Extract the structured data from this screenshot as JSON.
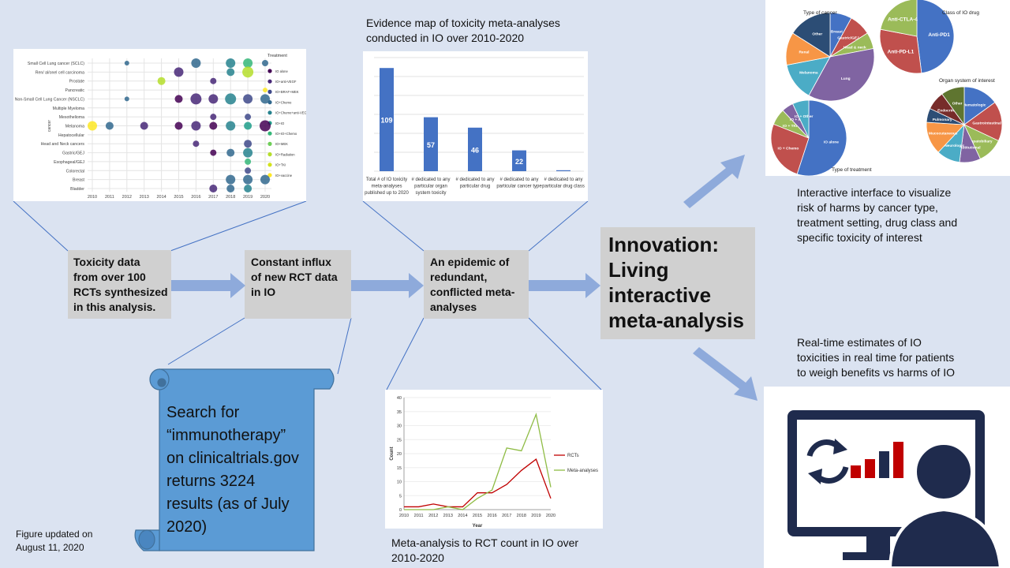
{
  "boxes": {
    "toxicity": [
      "Toxicity data",
      "from over  100",
      "RCTs synthesized",
      "in this analysis."
    ],
    "influx": [
      "Constant influx",
      "of new RCT data",
      "in IO"
    ],
    "epidemic": [
      "An epidemic of",
      "redundant,",
      "conflicted meta-",
      "analyses"
    ],
    "innovation": [
      "Innovation:",
      "Living",
      "interactive",
      "meta-analysis"
    ]
  },
  "scroll_text": [
    "Search for",
    "“immunotherapy”",
    "on clinicaltrials.gov",
    "returns 3224",
    "results (as of July",
    "2020)"
  ],
  "captions": {
    "evidence_map": [
      "Evidence map of toxicity meta-analyses",
      "conducted  in IO over  2010-2020"
    ],
    "interactive": [
      "Interactive interface to visualize",
      "risk of harms  by cancer type,",
      "treatment setting, drug class and",
      "specific toxicity of interest"
    ],
    "realtime": [
      "Real-time estimates of IO",
      "toxicities in real time  for patients",
      "to weigh benefits vs harms of IO"
    ],
    "ma_rct": [
      "Meta-analysis to RCT count in IO over",
      "2010-2020"
    ],
    "updated": [
      "Figure updated on",
      "August 11, 2020"
    ]
  },
  "colors": {
    "background": "#dbe3f1",
    "gray_box": "#d0d0d0",
    "arrow": "#8eaadb",
    "bar": "#4472c4",
    "scroll": "#5b9bd5",
    "rct_line": "#c00000",
    "ma_line": "#8fbc45",
    "monitor": "#1f2b4d"
  },
  "chart_data": [
    {
      "type": "scatter",
      "title": "",
      "legend_title": "Treatment",
      "legend_position": "right",
      "legend": [
        "IO alone",
        "IO+anti-VEGF",
        "IO+BRAF+MEK",
        "IO+Chemo",
        "IO+Chemo+anti-VEGF",
        "IO+IO",
        "IO+IO+Chemo",
        "IO+MEK",
        "IO+Radiation",
        "IO+TKI",
        "IO+vaccine"
      ],
      "ylabel": "cancer",
      "x_ticks": [
        "2010",
        "2011",
        "2012",
        "2013",
        "2014",
        "2015",
        "2016",
        "2017",
        "2018",
        "2019",
        "2020"
      ],
      "y_categories": [
        "Small Cell Lung cancer (SCLC)",
        "Ren/ al/onel cell carcinoma",
        "Prostate",
        "Pancreatic",
        "Non-Small Cell Lung Cancer (NSCLC)",
        "Multiple Myeloma",
        "Mesothelioma",
        "Melanoma",
        "Hepatocellular",
        "Head and Neck cancers",
        "Gastric/GEJ",
        "Esophageal/GEJ",
        "Colorectal",
        "Breast",
        "Bladder"
      ]
    },
    {
      "type": "bar",
      "title": "Evidence map of toxicity meta-analyses conducted  in IO over  2010-2020",
      "categories": [
        [
          "Total # of IO toxicity",
          "meta-analyses",
          "published up to 2020"
        ],
        [
          "# dedicated to any",
          "particular organ",
          "system toxicity"
        ],
        [
          "# dedicated to any",
          "particular drug"
        ],
        [
          "# dedicated to any",
          "particular cancer type"
        ],
        [
          "# dedicated to any",
          "particular drug class"
        ]
      ],
      "values": [
        109,
        57,
        46,
        22,
        1
      ],
      "ylim": [
        0,
        120
      ],
      "grid": true
    },
    {
      "type": "line",
      "title": "Meta-analysis to RCT count in IO over 2010-2020",
      "x": [
        2010,
        2011,
        2012,
        2013,
        2014,
        2015,
        2016,
        2017,
        2018,
        2019,
        2020
      ],
      "series": [
        {
          "name": "RCTs",
          "values": [
            1,
            1,
            2,
            1,
            1,
            6,
            6,
            9,
            14,
            18,
            4
          ]
        },
        {
          "name": "Meta-analyses",
          "values": [
            0,
            0,
            0,
            1,
            0,
            4,
            7,
            22,
            21,
            34,
            8
          ]
        }
      ],
      "xlabel": "Year",
      "ylabel": "Count",
      "ylim": [
        0,
        40
      ],
      "y_ticks": [
        0,
        5,
        10,
        15,
        20,
        25,
        30,
        35,
        40
      ],
      "legend_position": "right"
    },
    {
      "type": "pie",
      "title": "Type of cancer",
      "slices": [
        {
          "label": "Breast",
          "value": 8,
          "color": "#4472c4"
        },
        {
          "label": "Gastric/GEJ",
          "value": 8,
          "color": "#c0504d"
        },
        {
          "label": "Head & neck",
          "value": 6,
          "color": "#9bbb59"
        },
        {
          "label": "Lung",
          "value": 36,
          "color": "#8064a2"
        },
        {
          "label": "Melanoma",
          "value": 14,
          "color": "#4bacc6"
        },
        {
          "label": "Renal",
          "value": 12,
          "color": "#f79646"
        },
        {
          "label": "Other",
          "value": 16,
          "color": "#2c4d75"
        }
      ]
    },
    {
      "type": "pie",
      "title": "Class of IO drug",
      "slices": [
        {
          "label": "Anti-PD1",
          "value": 48,
          "color": "#4472c4"
        },
        {
          "label": "Anti-PD-L1",
          "value": 30,
          "color": "#c0504d"
        },
        {
          "label": "Anti-CTLA-4",
          "value": 22,
          "color": "#9bbb59"
        }
      ]
    },
    {
      "type": "pie",
      "title": "Type of treatment",
      "slices": [
        {
          "label": "IO alone",
          "value": 55,
          "color": "#4472c4"
        },
        {
          "label": "IO + Chemo",
          "value": 26,
          "color": "#c0504d"
        },
        {
          "label": "IO + TKI",
          "value": 7,
          "color": "#9bbb59"
        },
        {
          "label": "IO + IO",
          "value": 5,
          "color": "#8064a2"
        },
        {
          "label": "IO + Other",
          "value": 7,
          "color": "#4bacc6"
        }
      ]
    },
    {
      "type": "pie",
      "title": "Organ system of interest",
      "slices": [
        {
          "label": "Hematologic",
          "value": 15,
          "color": "#4472c4"
        },
        {
          "label": "Gastrointestinal",
          "value": 17,
          "color": "#c0504d"
        },
        {
          "label": "Hepatobiliary",
          "value": 11,
          "color": "#9bbb59"
        },
        {
          "label": "Constitutional",
          "value": 9,
          "color": "#8064a2"
        },
        {
          "label": "Neurologic",
          "value": 10,
          "color": "#4bacc6"
        },
        {
          "label": "Mucocutaneous",
          "value": 14,
          "color": "#f79646"
        },
        {
          "label": "Pulmonary",
          "value": 6,
          "color": "#2c4d75"
        },
        {
          "label": "Endocrine",
          "value": 8,
          "color": "#772c2a"
        },
        {
          "label": "Other",
          "value": 10,
          "color": "#5f7530"
        }
      ]
    }
  ]
}
